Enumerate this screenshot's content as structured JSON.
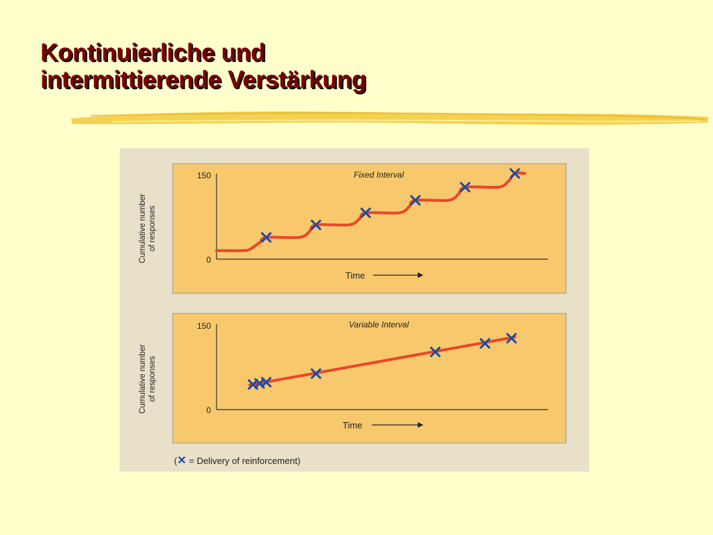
{
  "slide": {
    "title_line1": "Kontinuierliche und",
    "title_line2": "intermittierende Verstärkung"
  },
  "colors": {
    "background": "#ffffcc",
    "title": "#7a0000",
    "brush": "#f2c93a",
    "figure_bg": "#e8e0c8",
    "panel_bg": "#f8c86c",
    "line": "#e8472a",
    "marker": "#1e4aa6"
  },
  "icons": {
    "marker": "x-mark-icon",
    "arrow": "right-arrow-icon"
  },
  "legend": {
    "open": "(",
    "symbol": "✕",
    "text": " = Delivery of reinforcement)"
  },
  "chart_data": [
    {
      "type": "line",
      "title": "Fixed Interval",
      "xlabel": "Time",
      "ylabel_line1": "Cumulative number",
      "ylabel_line2": "of responses",
      "ylim": [
        0,
        150
      ],
      "yticks": [
        "150",
        "0"
      ],
      "grid": false,
      "x": [
        0.0,
        0.08,
        0.1,
        0.13,
        0.15,
        0.25,
        0.28,
        0.3,
        0.4,
        0.43,
        0.45,
        0.55,
        0.58,
        0.6,
        0.7,
        0.73,
        0.75,
        0.85,
        0.88,
        0.9,
        0.93
      ],
      "values": [
        15,
        15,
        17,
        29,
        38,
        38,
        48,
        60,
        60,
        70,
        81,
        81,
        91,
        103,
        103,
        114,
        126,
        126,
        136,
        150,
        150
      ],
      "reinforcements": [
        {
          "x": 0.15,
          "y": 38
        },
        {
          "x": 0.3,
          "y": 60
        },
        {
          "x": 0.45,
          "y": 81
        },
        {
          "x": 0.6,
          "y": 103
        },
        {
          "x": 0.75,
          "y": 126
        },
        {
          "x": 0.9,
          "y": 150
        }
      ]
    },
    {
      "type": "line",
      "title": "Variable Interval",
      "xlabel": "Time",
      "ylabel_line1": "Cumulative number",
      "ylabel_line2": "of responses",
      "ylim": [
        0,
        150
      ],
      "yticks": [
        "150",
        "0"
      ],
      "grid": false,
      "x": [
        0.1,
        0.9
      ],
      "values": [
        43,
        127
      ],
      "reinforcements": [
        {
          "x": 0.11,
          "y": 44
        },
        {
          "x": 0.13,
          "y": 46
        },
        {
          "x": 0.15,
          "y": 48
        },
        {
          "x": 0.3,
          "y": 63
        },
        {
          "x": 0.66,
          "y": 101
        },
        {
          "x": 0.81,
          "y": 116
        },
        {
          "x": 0.89,
          "y": 125
        }
      ]
    }
  ]
}
